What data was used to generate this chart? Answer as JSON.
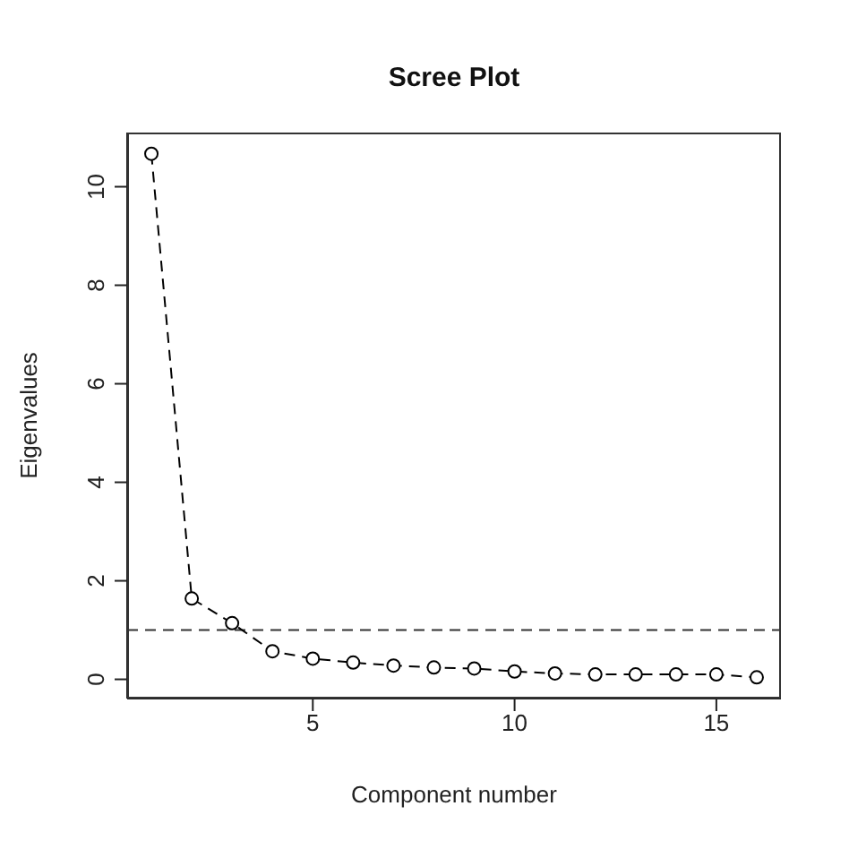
{
  "chart_data": {
    "type": "line",
    "title": "Scree Plot",
    "xlabel": "Component number",
    "ylabel": "Eigenvalues",
    "x": [
      1,
      2,
      3,
      4,
      5,
      6,
      7,
      8,
      9,
      10,
      11,
      12,
      13,
      14,
      15,
      16
    ],
    "series": [
      {
        "color": "#000000",
        "values": [
          10.67,
          1.64,
          1.14,
          0.57,
          0.42,
          0.34,
          0.28,
          0.24,
          0.22,
          0.16,
          0.12,
          0.1,
          0.1,
          0.1,
          0.1,
          0.04
        ]
      }
    ],
    "xlim": [
      0.4,
      16.6
    ],
    "xticks": [
      5,
      10,
      15
    ],
    "ylim": [
      -0.39,
      11.1
    ],
    "yticks": [
      0,
      2,
      4,
      6,
      8,
      10
    ],
    "ref_lines": [
      {
        "axis": "y",
        "value": 1,
        "line_style": "dashed"
      }
    ],
    "marker": "circle",
    "line_style": "dashed"
  }
}
